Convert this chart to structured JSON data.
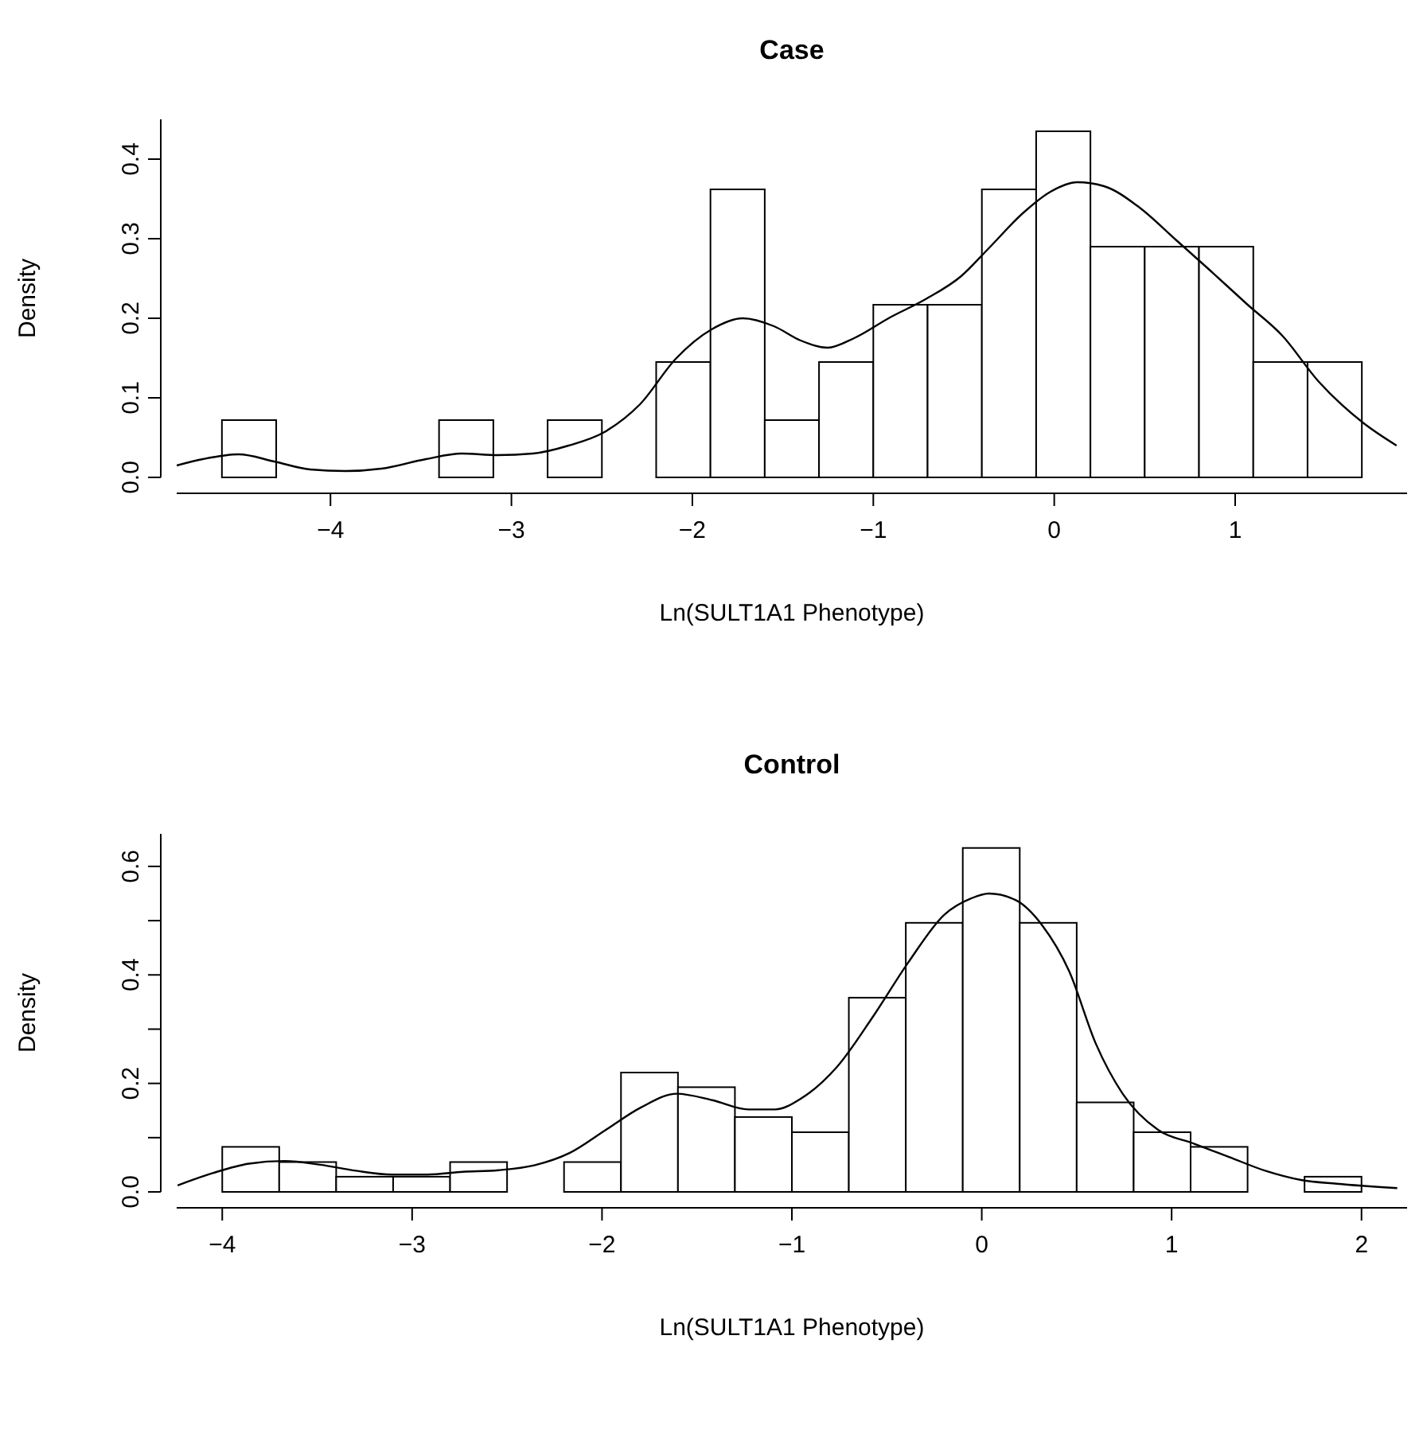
{
  "chart_data": [
    {
      "type": "histogram",
      "title": "Case",
      "xlabel": "Ln(SULT1A1 Phenotype)",
      "ylabel": "Density",
      "bins": [
        -4.6,
        -4.3,
        -4.0,
        -3.7,
        -3.4,
        -3.1,
        -2.8,
        -2.5,
        -2.2,
        -1.9,
        -1.6,
        -1.3,
        -1.0,
        -0.7,
        -0.4,
        -0.1,
        0.2,
        0.5,
        0.8,
        1.1,
        1.4,
        1.7
      ],
      "values": [
        0.072,
        0,
        0,
        0,
        0.072,
        0,
        0.072,
        0,
        0.145,
        0.362,
        0.072,
        0.145,
        0.217,
        0.217,
        0.362,
        0.435,
        0.29,
        0.29,
        0.29,
        0.145,
        0.145
      ],
      "xlim": [
        -4.85,
        1.95
      ],
      "xticks": [
        -4,
        -3,
        -2,
        -1,
        0,
        1
      ],
      "ylim": [
        0,
        0.45
      ],
      "yticks": [
        {
          "value": 0,
          "label": "0.0"
        },
        0.1,
        0.2,
        0.3,
        0.4
      ],
      "series": [
        {
          "type": "line",
          "color": "#000000",
          "x": [
            -4.85,
            -4.705,
            -4.508,
            -4.311,
            -4.113,
            -3.916,
            -3.719,
            -3.472,
            -3.275,
            -3.078,
            -2.881,
            -2.684,
            -2.486,
            -2.289,
            -2.092,
            -1.894,
            -1.722,
            -1.549,
            -1.401,
            -1.253,
            -1.106,
            -0.908,
            -0.711,
            -0.514,
            -0.366,
            -0.169,
            -0.021,
            0.127,
            0.275,
            0.472,
            0.67,
            0.867,
            1.064,
            1.261,
            1.459,
            1.705,
            1.892
          ],
          "values": [
            0.015,
            0.023,
            0.029,
            0.02,
            0.01,
            0.008,
            0.011,
            0.023,
            0.03,
            0.028,
            0.03,
            0.04,
            0.057,
            0.092,
            0.149,
            0.186,
            0.2,
            0.19,
            0.172,
            0.163,
            0.175,
            0.201,
            0.224,
            0.253,
            0.287,
            0.333,
            0.359,
            0.371,
            0.366,
            0.339,
            0.299,
            0.259,
            0.218,
            0.178,
            0.121,
            0.069,
            0.04
          ]
        }
      ]
    },
    {
      "type": "histogram",
      "title": "Control",
      "xlabel": "Ln(SULT1A1 Phenotype)",
      "ylabel": "Density",
      "bins": [
        -4.0,
        -3.7,
        -3.4,
        -3.1,
        -2.8,
        -2.5,
        -2.2,
        -1.9,
        -1.6,
        -1.3,
        -1.0,
        -0.7,
        -0.4,
        -0.1,
        0.2,
        0.5,
        0.8,
        1.1,
        1.4,
        1.7,
        2.0
      ],
      "values": [
        0.083,
        0.055,
        0.028,
        0.028,
        0.055,
        0,
        0.055,
        0.22,
        0.193,
        0.138,
        0.11,
        0.358,
        0.496,
        0.634,
        0.496,
        0.165,
        0.11,
        0.083,
        0,
        0.028
      ],
      "xlim": [
        -4.24,
        2.24
      ],
      "xticks": [
        -4,
        -3,
        -2,
        -1,
        0,
        1,
        2
      ],
      "ylim": [
        0,
        0.66
      ],
      "yticks": [
        {
          "value": 0,
          "label": "0.0"
        },
        {
          "value": 0.1,
          "label": null
        },
        0.2,
        {
          "value": 0.3,
          "label": null
        },
        0.4,
        {
          "value": 0.5,
          "label": null
        },
        0.6
      ],
      "series": [
        {
          "type": "line",
          "color": "#000000",
          "x": [
            -4.235,
            -4.047,
            -3.859,
            -3.671,
            -3.484,
            -3.296,
            -3.108,
            -2.92,
            -2.732,
            -2.545,
            -2.357,
            -2.169,
            -1.981,
            -1.793,
            -1.606,
            -1.418,
            -1.23,
            -1.089,
            -0.948,
            -0.761,
            -0.573,
            -0.385,
            -0.197,
            -0.056,
            0.038,
            0.178,
            0.319,
            0.46,
            0.601,
            0.742,
            0.93,
            1.117,
            1.305,
            1.493,
            1.681,
            1.869,
            2.188
          ],
          "values": [
            0.012,
            0.035,
            0.052,
            0.057,
            0.05,
            0.039,
            0.032,
            0.032,
            0.037,
            0.04,
            0.049,
            0.072,
            0.114,
            0.156,
            0.181,
            0.169,
            0.152,
            0.152,
            0.173,
            0.231,
            0.323,
            0.424,
            0.511,
            0.541,
            0.55,
            0.538,
            0.491,
            0.407,
            0.273,
            0.181,
            0.114,
            0.089,
            0.064,
            0.039,
            0.022,
            0.015,
            0.007
          ]
        }
      ]
    }
  ]
}
